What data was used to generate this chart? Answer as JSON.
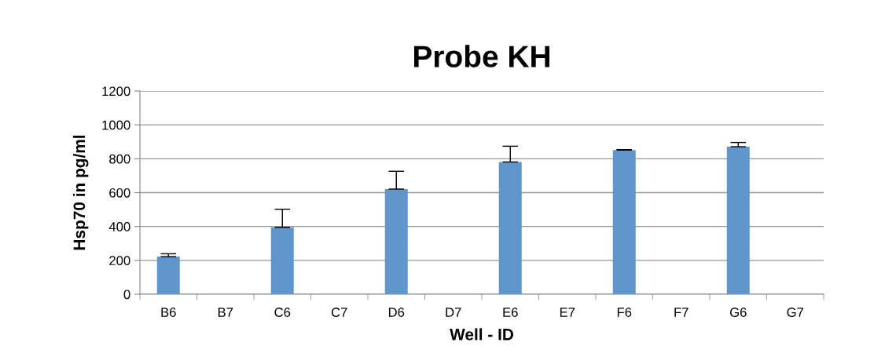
{
  "chart_data": {
    "type": "bar",
    "title": "Probe KH",
    "xlabel": "Well - ID",
    "ylabel": "Hsp70 in pg/ml",
    "categories": [
      "B6",
      "B7",
      "C6",
      "C7",
      "D6",
      "D7",
      "E6",
      "E7",
      "F6",
      "F7",
      "G6",
      "G7"
    ],
    "values": [
      222,
      null,
      395,
      null,
      621,
      null,
      781,
      null,
      851,
      null,
      871,
      null
    ],
    "errors": [
      17,
      null,
      107,
      null,
      105,
      null,
      93,
      null,
      3,
      null,
      25,
      null
    ],
    "color": "#6096cb",
    "ylim": [
      0,
      1200
    ],
    "yticks": [
      0,
      200,
      400,
      600,
      800,
      1000,
      1200
    ],
    "grid": "y"
  }
}
